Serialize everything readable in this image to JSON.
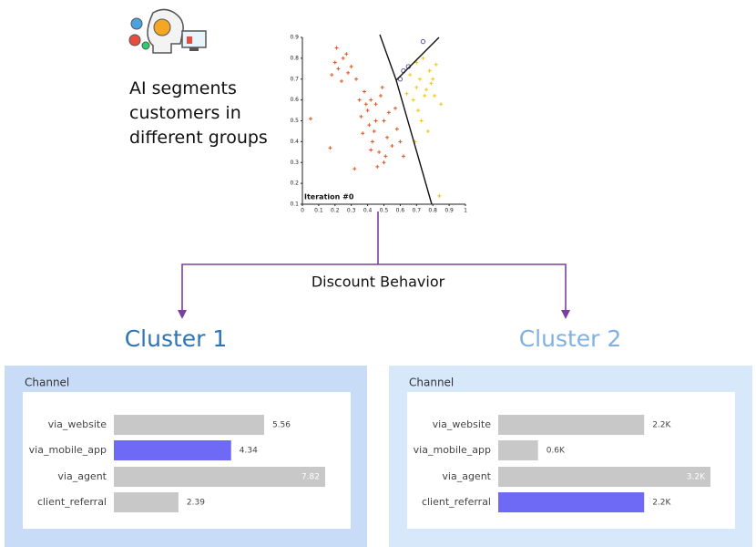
{
  "intro": "AI segments customers in different groups",
  "split_label": "Discount Behavior",
  "chart_data": [
    {
      "type": "scatter",
      "annotation": "Iteration #0",
      "xlim": [
        0,
        1
      ],
      "xticks": [
        0,
        0.1,
        0.2,
        0.3,
        0.4,
        0.5,
        0.6,
        0.7,
        0.8,
        0.9,
        1
      ],
      "ylim": [
        0.1,
        0.9
      ],
      "yticks": [
        0.1,
        0.2,
        0.3,
        0.4,
        0.5,
        0.6,
        0.7,
        0.8,
        0.9
      ],
      "series": [
        {
          "color": "#e0531c",
          "marker": "plus",
          "x": [
            0.2,
            0.22,
            0.25,
            0.28,
            0.18,
            0.3,
            0.24,
            0.27,
            0.21,
            0.33,
            0.38,
            0.42,
            0.45,
            0.4,
            0.48,
            0.5,
            0.44,
            0.52,
            0.36,
            0.41,
            0.55,
            0.47,
            0.5,
            0.43,
            0.58,
            0.46,
            0.39,
            0.53,
            0.49,
            0.6,
            0.35,
            0.45,
            0.51,
            0.57,
            0.42,
            0.37,
            0.05,
            0.17,
            0.62,
            0.32
          ],
          "values": [
            0.78,
            0.75,
            0.8,
            0.73,
            0.72,
            0.76,
            0.69,
            0.82,
            0.85,
            0.7,
            0.64,
            0.6,
            0.58,
            0.55,
            0.62,
            0.5,
            0.45,
            0.42,
            0.52,
            0.48,
            0.38,
            0.35,
            0.3,
            0.4,
            0.46,
            0.28,
            0.58,
            0.54,
            0.66,
            0.4,
            0.6,
            0.5,
            0.33,
            0.56,
            0.36,
            0.44,
            0.51,
            0.37,
            0.33,
            0.27
          ]
        },
        {
          "color": "#f2c40f",
          "marker": "plus",
          "x": [
            0.7,
            0.74,
            0.78,
            0.8,
            0.72,
            0.76,
            0.82,
            0.68,
            0.71,
            0.75,
            0.79,
            0.66,
            0.73,
            0.85,
            0.77,
            0.7,
            0.64,
            0.69,
            0.81,
            0.84
          ],
          "values": [
            0.78,
            0.8,
            0.74,
            0.7,
            0.7,
            0.65,
            0.77,
            0.6,
            0.55,
            0.62,
            0.68,
            0.72,
            0.5,
            0.58,
            0.45,
            0.66,
            0.63,
            0.4,
            0.62,
            0.14
          ]
        },
        {
          "color": "#4a4ab0",
          "marker": "circle",
          "x": [
            0.62,
            0.65,
            0.6,
            0.74
          ],
          "values": [
            0.74,
            0.76,
            0.7,
            0.88
          ]
        }
      ]
    },
    {
      "type": "hbar",
      "title": "Cluster 1",
      "title_color": "#2e75b6",
      "subtitle": "Channel",
      "panel_color": "#c9dcf7",
      "categories": [
        "via_website",
        "via_mobile_app",
        "via_agent",
        "client_referral"
      ],
      "values": [
        5.56,
        4.34,
        7.82,
        2.39
      ],
      "colors": [
        "#c8c8c8",
        "#6e6af5",
        "#c8c8c8",
        "#c8c8c8"
      ]
    },
    {
      "type": "hbar",
      "title": "Cluster 2",
      "title_color": "#7fb1e3",
      "subtitle": "Channel",
      "panel_color": "#d6e8fa",
      "categories": [
        "via_website",
        "via_mobile_app",
        "via_agent",
        "client_referral"
      ],
      "values": [
        2200,
        600,
        3200,
        2200
      ],
      "value_labels": [
        "2.2K",
        "0.6K",
        "3.2K",
        "2.2K"
      ],
      "colors": [
        "#c8c8c8",
        "#c8c8c8",
        "#c8c8c8",
        "#6e6af5"
      ]
    }
  ]
}
